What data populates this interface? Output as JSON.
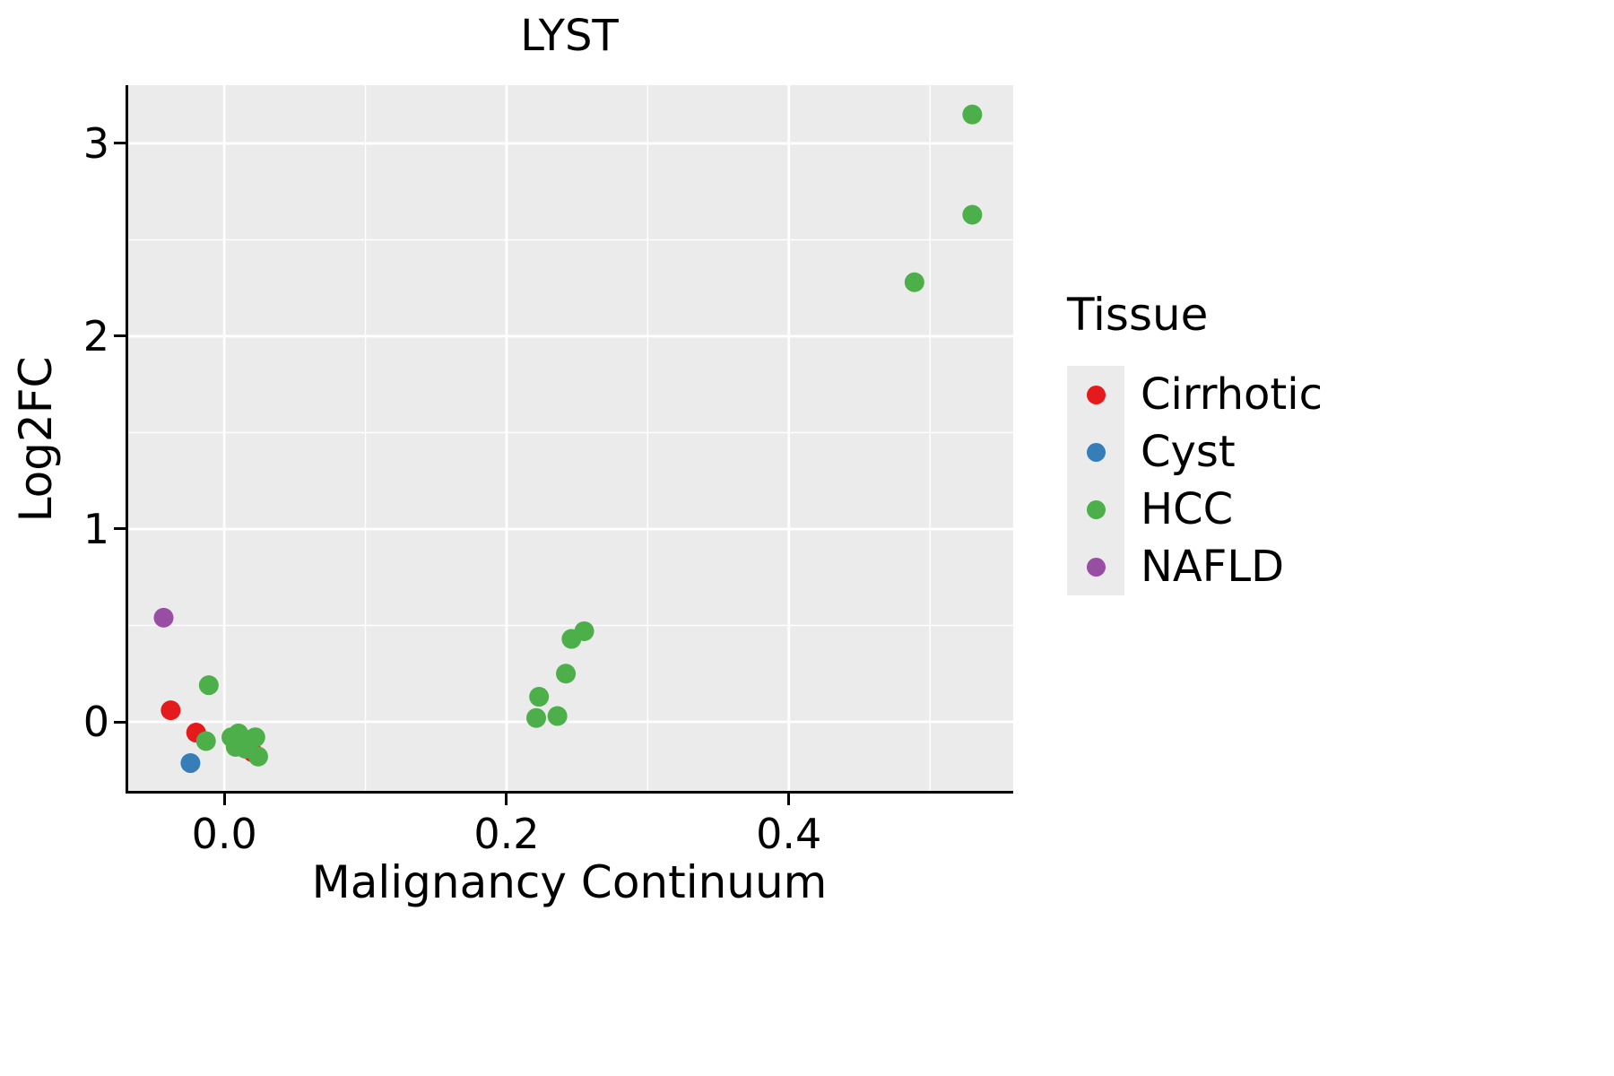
{
  "chart_data": {
    "type": "scatter",
    "title": "LYST",
    "xlabel": "Malignancy Continuum",
    "ylabel": "Log2FC",
    "xlim": [
      -0.07,
      0.559
    ],
    "ylim": [
      -0.372,
      3.302
    ],
    "xticks": [
      {
        "v": 0.0,
        "label": "0.0"
      },
      {
        "v": 0.2,
        "label": "0.2"
      },
      {
        "v": 0.4,
        "label": "0.4"
      }
    ],
    "yticks": [
      {
        "v": 0,
        "label": "0"
      },
      {
        "v": 1,
        "label": "1"
      },
      {
        "v": 2,
        "label": "2"
      },
      {
        "v": 3,
        "label": "3"
      }
    ],
    "minor_xticks": [
      0.1,
      0.3,
      0.5
    ],
    "minor_yticks": [
      0.5,
      1.5,
      2.5
    ],
    "grid": true,
    "panel_background": "#ebebeb",
    "gridline_color": "#ffffff",
    "legend": {
      "title": "Tissue",
      "position": "right"
    },
    "series": [
      {
        "name": "Cirrhotic",
        "color": "#e41a1c",
        "points": [
          [
            -0.038,
            0.06
          ],
          [
            -0.02,
            -0.056
          ],
          [
            0.02,
            -0.158
          ]
        ]
      },
      {
        "name": "Cyst",
        "color": "#377eb8",
        "points": [
          [
            -0.024,
            -0.214
          ]
        ]
      },
      {
        "name": "HCC",
        "color": "#4daf4a",
        "points": [
          [
            0.53,
            3.15
          ],
          [
            0.53,
            2.63
          ],
          [
            0.489,
            2.28
          ],
          [
            0.255,
            0.47
          ],
          [
            0.246,
            0.43
          ],
          [
            0.242,
            0.25
          ],
          [
            0.223,
            0.13
          ],
          [
            0.221,
            0.02
          ],
          [
            0.236,
            0.03
          ],
          [
            -0.011,
            0.19
          ],
          [
            -0.013,
            -0.1
          ],
          [
            0.005,
            -0.08
          ],
          [
            0.01,
            -0.06
          ],
          [
            0.014,
            -0.1
          ],
          [
            0.019,
            -0.09
          ],
          [
            0.008,
            -0.13
          ],
          [
            0.015,
            -0.14
          ],
          [
            0.022,
            -0.08
          ],
          [
            0.024,
            -0.18
          ]
        ]
      },
      {
        "name": "NAFLD",
        "color": "#984ea3",
        "points": [
          [
            -0.043,
            0.54
          ]
        ]
      }
    ]
  }
}
